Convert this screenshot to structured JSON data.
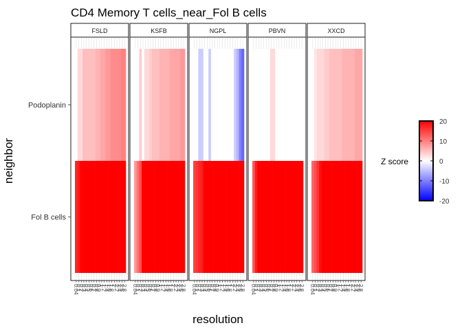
{
  "chart_data": {
    "type": "heatmap",
    "title": "CD4 Memory T cells_near_Fol B cells",
    "xlabel": "resolution",
    "ylabel": "neighbor",
    "rows": [
      "Podoplanin",
      "Fol B cells"
    ],
    "x_ticks": [
      "0.04",
      "0.1",
      "0.2",
      "0.3",
      "0.4",
      "0.5",
      "0.6",
      "0.7",
      "0.8",
      "0.9",
      "1",
      "1.2",
      "1.4",
      "1.6",
      "1.8",
      "2",
      "2.2",
      "2.4",
      "2.6",
      "2.8"
    ],
    "panels": [
      {
        "name": "FSLD",
        "values": {
          "Podoplanin": [
            0,
            3,
            3,
            5,
            5,
            5,
            5,
            5,
            6,
            6,
            7,
            7,
            8,
            8,
            9,
            9,
            9,
            9,
            10,
            10
          ],
          "Fol B cells": [
            17,
            18,
            20,
            20,
            20,
            20,
            20,
            20,
            20,
            20,
            20,
            20,
            20,
            20,
            20,
            20,
            20,
            20,
            20,
            20
          ]
        }
      },
      {
        "name": "KSFB",
        "values": {
          "Podoplanin": [
            0,
            0,
            4,
            0,
            3,
            3,
            4,
            5,
            5,
            5,
            6,
            6,
            6,
            6,
            7,
            7,
            7,
            7,
            8,
            8
          ],
          "Fol B cells": [
            8,
            11,
            14,
            20,
            20,
            20,
            20,
            20,
            20,
            20,
            20,
            20,
            20,
            20,
            20,
            20,
            20,
            20,
            20,
            20
          ]
        }
      },
      {
        "name": "NGPL",
        "values": {
          "Podoplanin": [
            0,
            0,
            -4,
            -4,
            0,
            0,
            -4,
            0,
            0,
            0,
            0,
            0,
            0,
            0,
            0,
            0,
            -4,
            -6,
            -10,
            -12
          ],
          "Fol B cells": [
            15,
            16,
            17,
            18,
            20,
            20,
            20,
            20,
            20,
            20,
            20,
            20,
            20,
            20,
            20,
            20,
            20,
            20,
            20,
            20
          ]
        }
      },
      {
        "name": "PBVN",
        "values": {
          "Podoplanin": [
            0,
            0,
            0,
            0,
            0,
            0,
            0,
            3,
            3,
            0,
            0,
            0,
            0,
            0,
            0,
            0,
            0,
            0,
            0,
            0
          ],
          "Fol B cells": [
            13,
            18,
            20,
            20,
            20,
            20,
            20,
            20,
            20,
            20,
            20,
            20,
            20,
            20,
            20,
            20,
            20,
            20,
            20,
            20
          ]
        }
      },
      {
        "name": "XXCD",
        "values": {
          "Podoplanin": [
            0,
            2,
            3,
            3,
            3,
            4,
            4,
            5,
            5,
            5,
            5,
            5,
            6,
            6,
            6,
            6,
            6,
            7,
            7,
            7
          ],
          "Fol B cells": [
            12,
            14,
            16,
            19,
            20,
            20,
            20,
            20,
            20,
            20,
            20,
            20,
            20,
            20,
            20,
            20,
            20,
            20,
            20,
            20
          ]
        }
      }
    ],
    "legend": {
      "title": "Z score",
      "ticks": [
        20,
        10,
        0,
        -10,
        -20
      ],
      "low_color": "#0000ff",
      "mid_color": "#ffffff",
      "high_color": "#ff0000",
      "range": [
        -20,
        20
      ],
      "placement": "right"
    }
  }
}
